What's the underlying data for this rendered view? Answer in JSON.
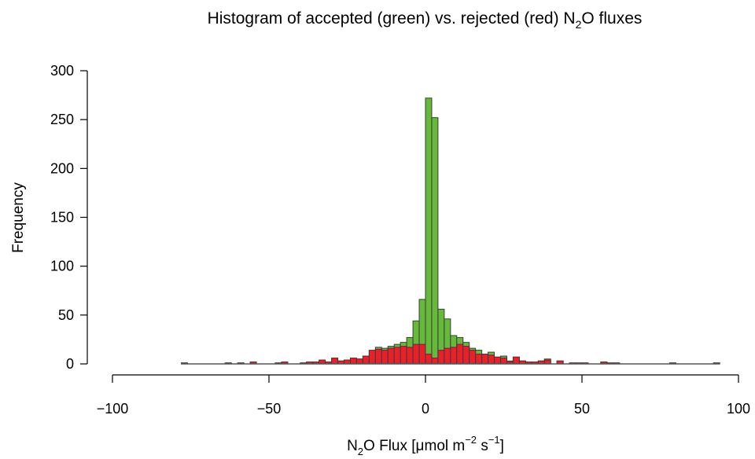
{
  "chart_data": {
    "type": "bar",
    "title_parts": [
      "Histogram of accepted (green) vs. rejected (red) N",
      "2",
      "O fluxes"
    ],
    "xlabel_parts": [
      "N",
      "2",
      "O Flux [μmol m",
      "−2",
      " s",
      "−1",
      "]"
    ],
    "ylabel": "Frequency",
    "xlim": [
      -100,
      100
    ],
    "ylim": [
      0,
      300
    ],
    "x_ticks": [
      -100,
      -50,
      0,
      50,
      100
    ],
    "x_tick_labels": [
      "−100",
      "−50",
      "0",
      "50",
      "100"
    ],
    "y_ticks": [
      0,
      50,
      100,
      150,
      200,
      250,
      300
    ],
    "y_tick_labels": [
      "0",
      "50",
      "100",
      "150",
      "200",
      "250",
      "300"
    ],
    "bin_width": 2,
    "series": [
      {
        "color": "#66b93b",
        "bins": [
          [
            -78,
            -76,
            1
          ],
          [
            -64,
            -62,
            1
          ],
          [
            -60,
            -58,
            1
          ],
          [
            -56,
            -54,
            1
          ],
          [
            -48,
            -46,
            1
          ],
          [
            -46,
            -44,
            1
          ],
          [
            -40,
            -38,
            1
          ],
          [
            -38,
            -36,
            2
          ],
          [
            -36,
            -34,
            2
          ],
          [
            -34,
            -32,
            3
          ],
          [
            -32,
            -30,
            2
          ],
          [
            -30,
            -28,
            5
          ],
          [
            -28,
            -26,
            3
          ],
          [
            -26,
            -24,
            4
          ],
          [
            -24,
            -22,
            5
          ],
          [
            -22,
            -20,
            5
          ],
          [
            -20,
            -18,
            8
          ],
          [
            -18,
            -16,
            13
          ],
          [
            -16,
            -14,
            17
          ],
          [
            -14,
            -12,
            16
          ],
          [
            -12,
            -10,
            18
          ],
          [
            -10,
            -8,
            20
          ],
          [
            -8,
            -6,
            22
          ],
          [
            -6,
            -4,
            27
          ],
          [
            -4,
            -2,
            44
          ],
          [
            -2,
            0,
            66
          ],
          [
            0,
            2,
            272
          ],
          [
            2,
            4,
            252
          ],
          [
            4,
            6,
            56
          ],
          [
            6,
            8,
            46
          ],
          [
            8,
            10,
            29
          ],
          [
            10,
            12,
            27
          ],
          [
            12,
            14,
            22
          ],
          [
            14,
            16,
            16
          ],
          [
            16,
            18,
            14
          ],
          [
            18,
            20,
            10
          ],
          [
            20,
            22,
            12
          ],
          [
            22,
            24,
            7
          ],
          [
            24,
            26,
            8
          ],
          [
            26,
            28,
            3
          ],
          [
            28,
            30,
            7
          ],
          [
            30,
            32,
            3
          ],
          [
            32,
            34,
            2
          ],
          [
            34,
            36,
            2
          ],
          [
            36,
            38,
            3
          ],
          [
            38,
            40,
            5
          ],
          [
            42,
            44,
            3
          ],
          [
            46,
            48,
            1
          ],
          [
            48,
            50,
            1
          ],
          [
            50,
            52,
            1
          ],
          [
            56,
            58,
            2
          ],
          [
            58,
            60,
            1
          ],
          [
            60,
            62,
            1
          ],
          [
            78,
            80,
            1
          ],
          [
            92,
            94,
            1
          ]
        ]
      },
      {
        "color": "#e8202a",
        "bins": [
          [
            -78,
            -76,
            1
          ],
          [
            -64,
            -62,
            1
          ],
          [
            -60,
            -58,
            1
          ],
          [
            -56,
            -54,
            2
          ],
          [
            -48,
            -46,
            1
          ],
          [
            -46,
            -44,
            2
          ],
          [
            -40,
            -38,
            1
          ],
          [
            -38,
            -36,
            2
          ],
          [
            -36,
            -34,
            2
          ],
          [
            -34,
            -32,
            4
          ],
          [
            -32,
            -30,
            2
          ],
          [
            -30,
            -28,
            6
          ],
          [
            -28,
            -26,
            3
          ],
          [
            -26,
            -24,
            4
          ],
          [
            -24,
            -22,
            6
          ],
          [
            -22,
            -20,
            5
          ],
          [
            -20,
            -18,
            8
          ],
          [
            -18,
            -16,
            14
          ],
          [
            -16,
            -14,
            15
          ],
          [
            -14,
            -12,
            14
          ],
          [
            -12,
            -10,
            16
          ],
          [
            -10,
            -8,
            17
          ],
          [
            -8,
            -6,
            18
          ],
          [
            -6,
            -4,
            17
          ],
          [
            -4,
            -2,
            20
          ],
          [
            -2,
            0,
            20
          ],
          [
            0,
            2,
            10
          ],
          [
            2,
            4,
            6
          ],
          [
            4,
            6,
            14
          ],
          [
            6,
            8,
            16
          ],
          [
            8,
            10,
            17
          ],
          [
            10,
            12,
            20
          ],
          [
            12,
            14,
            18
          ],
          [
            14,
            16,
            14
          ],
          [
            16,
            18,
            10
          ],
          [
            18,
            20,
            10
          ],
          [
            20,
            22,
            9
          ],
          [
            22,
            24,
            7
          ],
          [
            24,
            26,
            6
          ],
          [
            26,
            28,
            2
          ],
          [
            28,
            30,
            7
          ],
          [
            30,
            32,
            3
          ],
          [
            32,
            34,
            2
          ],
          [
            34,
            36,
            2
          ],
          [
            36,
            38,
            3
          ],
          [
            38,
            40,
            4
          ],
          [
            42,
            44,
            3
          ],
          [
            46,
            48,
            1
          ],
          [
            48,
            50,
            1
          ],
          [
            50,
            52,
            1
          ],
          [
            56,
            58,
            2
          ],
          [
            58,
            60,
            1
          ],
          [
            60,
            62,
            1
          ],
          [
            78,
            80,
            1
          ],
          [
            92,
            94,
            1
          ]
        ]
      }
    ]
  }
}
